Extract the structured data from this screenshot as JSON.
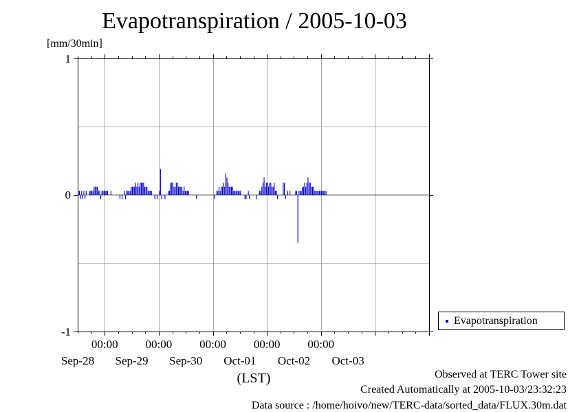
{
  "chart_data": {
    "type": "bar",
    "title": "Evapotranspiration / 2005-10-03",
    "ylabel": "[mm/30min]",
    "xlabel": "(LST)",
    "ylim": [
      -1,
      1
    ],
    "y_ticks": [
      "1",
      "0",
      "-1"
    ],
    "x_time_labels": [
      "00:00",
      "00:00",
      "00:00",
      "00:00",
      "00:00"
    ],
    "x_date_labels": [
      "Sep-28",
      "Sep-29",
      "Sep-30",
      "Oct-01",
      "Oct-02",
      "Oct-03"
    ],
    "x_start": "2005-09-27T12:00",
    "x_end": "2005-10-04T00:00",
    "x_interval_minutes": 30,
    "grid": true,
    "legend_position": "right",
    "color": "#0000cc",
    "series": [
      {
        "name": "Evapotranspiration",
        "values": [
          0.03,
          0.03,
          -0.03,
          0.03,
          -0.03,
          0.03,
          -0.03,
          0.03,
          0,
          0,
          0.03,
          0.03,
          0.03,
          0.03,
          0.06,
          0.06,
          0.06,
          0.06,
          0.03,
          0.03,
          -0.03,
          0.03,
          0.03,
          0.03,
          0.03,
          0.03,
          0.03,
          0,
          0,
          0.03,
          0,
          0,
          0,
          0,
          0,
          0,
          0,
          -0.03,
          0,
          -0.03,
          0,
          0.03,
          -0.03,
          0.03,
          0.03,
          0.03,
          0.03,
          0.06,
          0.06,
          0.06,
          0.06,
          0.09,
          0.06,
          0.09,
          0.06,
          0.09,
          0.09,
          0.09,
          0.09,
          0.06,
          0.06,
          0.06,
          0.03,
          0.03,
          0.03,
          0.03,
          0,
          0,
          -0.03,
          0,
          -0.03,
          0,
          0.03,
          0.19,
          -0.03,
          0,
          0,
          -0.03,
          0,
          0,
          0.03,
          0.03,
          0.09,
          0.09,
          0.09,
          0.06,
          0.06,
          0.09,
          0.09,
          0.06,
          0.06,
          0.06,
          0.06,
          0.03,
          0.06,
          0.03,
          0.03,
          0.03,
          0.03,
          0,
          0,
          0,
          0,
          0,
          0,
          -0.03,
          0,
          0,
          0,
          0,
          0,
          0,
          0,
          0,
          0,
          0,
          0,
          0,
          0,
          0,
          0,
          -0.03,
          0,
          0.03,
          0.03,
          0.06,
          0.03,
          0.06,
          0.06,
          0.09,
          0.06,
          0.16,
          0.13,
          0.09,
          0.06,
          0.06,
          0.06,
          0.06,
          0.03,
          0.03,
          0.03,
          0.03,
          0.03,
          0.03,
          0.03,
          0,
          0,
          0,
          -0.03,
          -0.03,
          0,
          0.03,
          -0.03,
          0,
          0,
          0,
          0,
          0,
          -0.03,
          0,
          0,
          0.03,
          0.03,
          0.06,
          0.09,
          0.13,
          0.06,
          0.09,
          0.09,
          0.06,
          0.09,
          0.09,
          0.06,
          0.06,
          0.09,
          0.03,
          0.03,
          -0.03,
          0,
          0,
          0,
          0,
          0.09,
          0.09,
          -0.03,
          0,
          0.03,
          0,
          0.03,
          0,
          0,
          0,
          0,
          0.03,
          0.03,
          -0.35,
          0.03,
          0.03,
          0.03,
          0.06,
          0.06,
          0.09,
          0.06,
          0.09,
          0.13,
          0.09,
          0.09,
          0.06,
          0.06,
          0.06,
          0.03,
          0.03,
          0.03,
          0.03,
          0.03,
          0.03,
          0.03,
          0.03,
          0.03,
          0.03,
          0.03,
          0,
          0,
          0,
          0,
          0,
          0,
          0
        ]
      }
    ]
  },
  "footer": {
    "line1": "Observed at TERC Tower site",
    "line2": "Created Automatically at 2005-10-03/23:32:23",
    "line3": "Data source : /home/hoivo/new/TERC-data/sorted_data/FLUX.30m.dat"
  }
}
